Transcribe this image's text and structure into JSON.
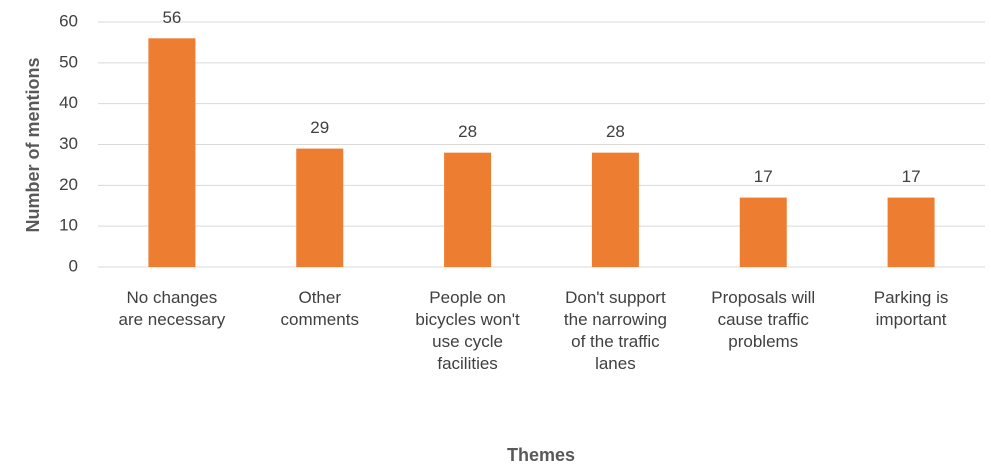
{
  "chart_data": {
    "type": "bar",
    "x_label": "Themes",
    "y_label": "Number of mentions",
    "categories": [
      "No changes are necessary",
      "Other comments",
      "People on bicycles won't use cycle facilities",
      "Don't support the narrowing of the traffic lanes",
      "Proposals will cause traffic problems",
      "Parking is important"
    ],
    "values": [
      56,
      29,
      28,
      28,
      17,
      17
    ],
    "color": "#ed7d31",
    "ylim": [
      0,
      60
    ],
    "yticks": [
      0,
      10,
      20,
      30,
      40,
      50,
      60
    ],
    "grid": true
  }
}
